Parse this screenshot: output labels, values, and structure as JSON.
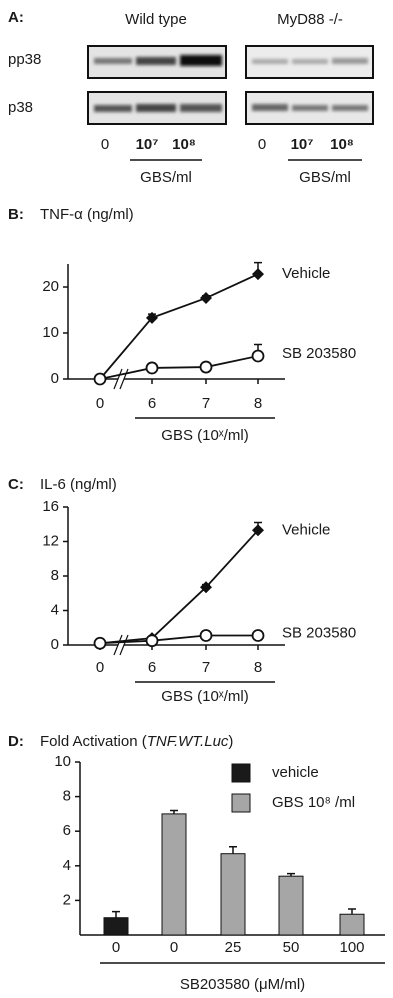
{
  "blot": {
    "label": "A:",
    "rows": [
      "pp38",
      "p38"
    ],
    "groups": [
      {
        "title": "Wild type",
        "doses": [
          "0",
          "10⁷",
          "10⁸"
        ],
        "unit": "GBS/ml"
      },
      {
        "title": "MyD88 -/-",
        "doses": [
          "0",
          "10⁷",
          "10⁸"
        ],
        "unit": "GBS/ml"
      }
    ]
  },
  "chart_data": [
    {
      "type": "line",
      "label": "B:",
      "title": "TNF-α (ng/ml)",
      "x_label": "GBS (10ˣ/ml)",
      "categories": [
        "0",
        "6",
        "7",
        "8"
      ],
      "axis_break": true,
      "series": [
        {
          "name": "Vehicle",
          "color": "#111111",
          "marker": "diamond",
          "values": [
            0,
            13.3,
            17.6,
            22.8
          ],
          "errors": [
            0,
            0.8,
            0.5,
            2.5
          ]
        },
        {
          "name": "SB 203580",
          "color": "#111111",
          "marker": "open-circle",
          "values": [
            0,
            2.4,
            2.6,
            5
          ],
          "errors": [
            0,
            0.3,
            0.3,
            2.5
          ]
        }
      ],
      "ylim": [
        0,
        25
      ],
      "yticks": [
        0,
        10,
        20
      ]
    },
    {
      "type": "line",
      "label": "C:",
      "title": "IL-6 (ng/ml)",
      "x_label": "GBS (10ˣ/ml)",
      "categories": [
        "0",
        "6",
        "7",
        "8"
      ],
      "axis_break": true,
      "series": [
        {
          "name": "Vehicle",
          "color": "#111111",
          "marker": "diamond",
          "values": [
            0.2,
            0.8,
            6.7,
            13.3
          ],
          "errors": [
            0,
            0,
            0.3,
            0.9
          ]
        },
        {
          "name": "SB 203580",
          "color": "#111111",
          "marker": "open-circle",
          "values": [
            0.2,
            0.5,
            1.1,
            1.1
          ],
          "errors": [
            0,
            0,
            0.2,
            0.2
          ]
        }
      ],
      "ylim": [
        0,
        16
      ],
      "yticks": [
        0,
        4,
        8,
        12,
        16
      ]
    },
    {
      "type": "bar",
      "label": "D:",
      "title": "Fold Activation (",
      "title_italic": "TNF.WT.Luc",
      "title_end": ")",
      "x_label": "SB203580 (μM/ml)",
      "categories": [
        "0",
        "0",
        "25",
        "50",
        "100"
      ],
      "series": [
        {
          "name": "vehicle",
          "color": "#1a1a1a",
          "values": [
            1,
            null,
            null,
            null,
            null
          ],
          "errors": [
            0.35,
            null,
            null,
            null,
            null
          ]
        },
        {
          "name": "GBS 10⁸ /ml",
          "color": "#a6a6a6",
          "values": [
            null,
            7,
            4.7,
            3.4,
            1.2
          ],
          "errors": [
            null,
            0.2,
            0.4,
            0.15,
            0.3
          ]
        }
      ],
      "ylim": [
        0,
        10
      ],
      "yticks": [
        2,
        4,
        6,
        8,
        10
      ]
    }
  ]
}
